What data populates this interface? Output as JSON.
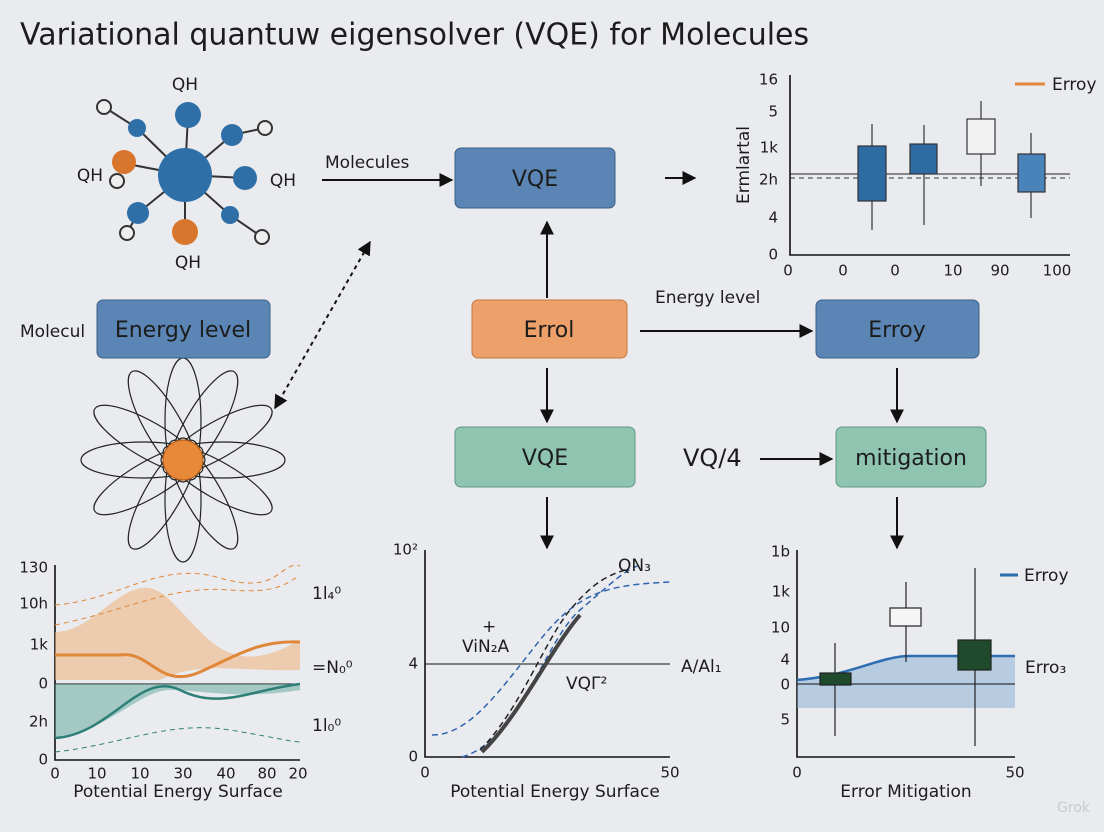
{
  "title": "Variational quantuw eigensolver (VQE) for Molecules",
  "molecule": {
    "labels": [
      "QH",
      "QH",
      "QH",
      "QH"
    ]
  },
  "side_label": "Molecul",
  "nodes": [
    {
      "label": "VQE"
    },
    {
      "label": "Energy level"
    },
    {
      "label": "Errol"
    },
    {
      "label": "Erroy"
    },
    {
      "label": "VQE"
    },
    {
      "label": "mitigation"
    }
  ],
  "edge_labels": [
    "Molecules",
    "Energy level",
    "VQ/4"
  ],
  "charts": [
    {
      "y_title": "Ermlartal",
      "legend": "Erroy",
      "y_labels": [
        "16",
        "5",
        "1k",
        "2h",
        "4",
        "0"
      ],
      "x_labels": [
        "0",
        "0",
        "0",
        "10",
        "90",
        "100"
      ]
    },
    {
      "x_title": "Potential Energy Surface",
      "y_labels": [
        "130",
        "10h",
        "1k",
        "0",
        "2h",
        "0"
      ],
      "x_labels": [
        "0",
        "10",
        "10",
        "30",
        "40",
        "80",
        "20"
      ],
      "annotations": [
        "1l₄⁰",
        "=N₀⁰",
        "1l₀⁰"
      ]
    },
    {
      "x_title": "Potential Energy Surface",
      "y_labels": [
        "10²",
        "4",
        "0"
      ],
      "x_labels": [
        "0",
        "50"
      ],
      "annotations": [
        "QN₃",
        "+",
        "ViN₂A",
        "A/Al₁",
        "VQΓ²"
      ]
    },
    {
      "x_title": "Error Mitigation",
      "legend": "Erroy",
      "y_labels": [
        "1b",
        "1k",
        "10",
        "4",
        "0",
        "5"
      ],
      "x_labels": [
        "0",
        "50"
      ],
      "annotations": [
        "Erro₃"
      ]
    }
  ],
  "watermark": "Grok"
}
